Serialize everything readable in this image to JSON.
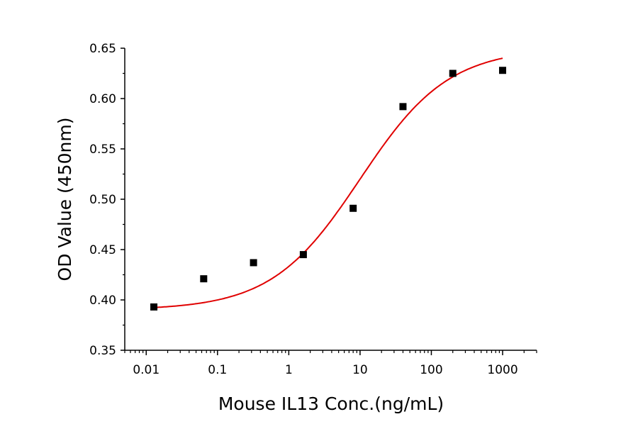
{
  "chart_data": {
    "type": "scatter",
    "title": "",
    "xlabel": "Mouse IL13 Conc.(ng/mL)",
    "ylabel": "OD Value (450nm)",
    "xscale": "log",
    "xlim": [
      0.005,
      3000
    ],
    "ylim": [
      0.35,
      0.65
    ],
    "xticks": [
      0.01,
      0.1,
      1,
      10,
      100,
      1000
    ],
    "xtick_labels": [
      "0.01",
      "0.1",
      "1",
      "10",
      "100",
      "1000"
    ],
    "yticks": [
      0.35,
      0.4,
      0.45,
      0.5,
      0.55,
      0.6,
      0.65
    ],
    "ytick_labels": [
      "0.35",
      "0.40",
      "0.45",
      "0.50",
      "0.55",
      "0.60",
      "0.65"
    ],
    "grid": false,
    "series": [
      {
        "kind": "points",
        "marker": "square",
        "color": "#000000",
        "x": [
          0.0128,
          0.064,
          0.32,
          1.6,
          8,
          40,
          200,
          1000
        ],
        "y": [
          0.393,
          0.421,
          0.437,
          0.445,
          0.491,
          0.592,
          0.625,
          0.628
        ]
      },
      {
        "kind": "fit-curve",
        "color": "#e00000",
        "model": "4PL",
        "bottom": 0.39,
        "top": 0.65,
        "ec50": 10,
        "hill": 0.7,
        "x_range": [
          0.0128,
          1000
        ]
      }
    ]
  }
}
